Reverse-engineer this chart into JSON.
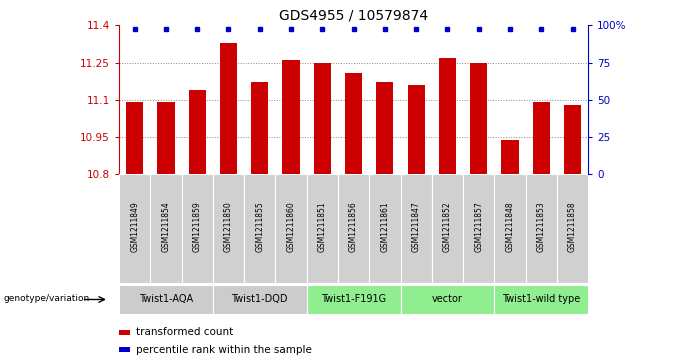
{
  "title": "GDS4955 / 10579874",
  "samples": [
    "GSM1211849",
    "GSM1211854",
    "GSM1211859",
    "GSM1211850",
    "GSM1211855",
    "GSM1211860",
    "GSM1211851",
    "GSM1211856",
    "GSM1211861",
    "GSM1211847",
    "GSM1211852",
    "GSM1211857",
    "GSM1211848",
    "GSM1211853",
    "GSM1211858"
  ],
  "bar_values": [
    11.09,
    11.09,
    11.14,
    11.33,
    11.17,
    11.26,
    11.25,
    11.21,
    11.17,
    11.16,
    11.27,
    11.25,
    10.94,
    11.09,
    11.08
  ],
  "groups": [
    {
      "label": "Twist1-AQA",
      "start": 0,
      "end": 3,
      "color": "#cccccc"
    },
    {
      "label": "Twist1-DQD",
      "start": 3,
      "end": 6,
      "color": "#cccccc"
    },
    {
      "label": "Twist1-F191G",
      "start": 6,
      "end": 9,
      "color": "#90ee90"
    },
    {
      "label": "vector",
      "start": 9,
      "end": 12,
      "color": "#90ee90"
    },
    {
      "label": "Twist1-wild type",
      "start": 12,
      "end": 15,
      "color": "#90ee90"
    }
  ],
  "ymin": 10.8,
  "ymax": 11.4,
  "yticks": [
    10.8,
    10.95,
    11.1,
    11.25,
    11.4
  ],
  "ytick_labels": [
    "10.8",
    "10.95",
    "11.1",
    "11.25",
    "11.4"
  ],
  "right_yticks": [
    0,
    25,
    50,
    75,
    100
  ],
  "right_ytick_labels": [
    "0",
    "25",
    "50",
    "75",
    "100%"
  ],
  "bar_color": "#cc0000",
  "dot_color": "#0000cc",
  "grid_color": "#888888",
  "legend_bar_label": "transformed count",
  "legend_dot_label": "percentile rank within the sample",
  "genotype_label": "genotype/variation",
  "background_color": "#ffffff",
  "sample_cell_color": "#d0d0d0"
}
